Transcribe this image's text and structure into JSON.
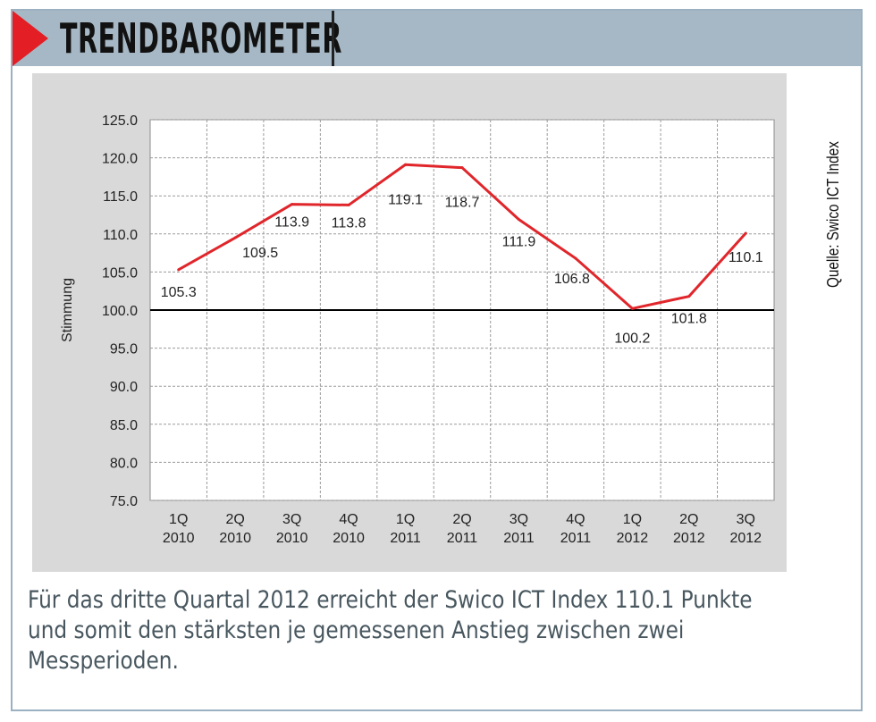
{
  "header": {
    "title": "TRENDBAROMETER"
  },
  "source": "Quelle: Swico ICT Index",
  "caption": [
    "Für das dritte Quartal 2012 erreicht der Swico ICT Index 110.1 Punkte",
    "und somit den stärksten je gemessenen Anstieg zwischen zwei",
    "Messperioden."
  ],
  "colors": {
    "accent": "#e31e24",
    "header": "#a6b8c5",
    "line": "#e0262b",
    "plot_bg": "#ffffff",
    "panel_bg": "#d9d9d9"
  },
  "chart_data": {
    "type": "line",
    "ylabel": "Stimmung",
    "xlabel": "",
    "ylim": [
      75.0,
      125.0
    ],
    "yticks": [
      "75.0",
      "80.0",
      "85.0",
      "90.0",
      "95.0",
      "100.0",
      "105.0",
      "110.0",
      "115.0",
      "120.0",
      "125.0"
    ],
    "categories": [
      [
        "1Q",
        "2010"
      ],
      [
        "2Q",
        "2010"
      ],
      [
        "3Q",
        "2010"
      ],
      [
        "4Q",
        "2010"
      ],
      [
        "1Q",
        "2011"
      ],
      [
        "2Q",
        "2011"
      ],
      [
        "3Q",
        "2011"
      ],
      [
        "4Q",
        "2011"
      ],
      [
        "1Q",
        "2012"
      ],
      [
        "2Q",
        "2012"
      ],
      [
        "3Q",
        "2012"
      ]
    ],
    "values": [
      105.3,
      109.5,
      113.9,
      113.8,
      119.1,
      118.7,
      111.9,
      106.8,
      100.2,
      101.8,
      110.1
    ],
    "data_labels": [
      "105.3",
      "109.5",
      "113.9",
      "113.8",
      "119.1",
      "118.7",
      "111.9",
      "106.8",
      "100.2",
      "101.8",
      "110.1"
    ],
    "reference_line": 100.0,
    "grid": true,
    "legend": "none"
  }
}
